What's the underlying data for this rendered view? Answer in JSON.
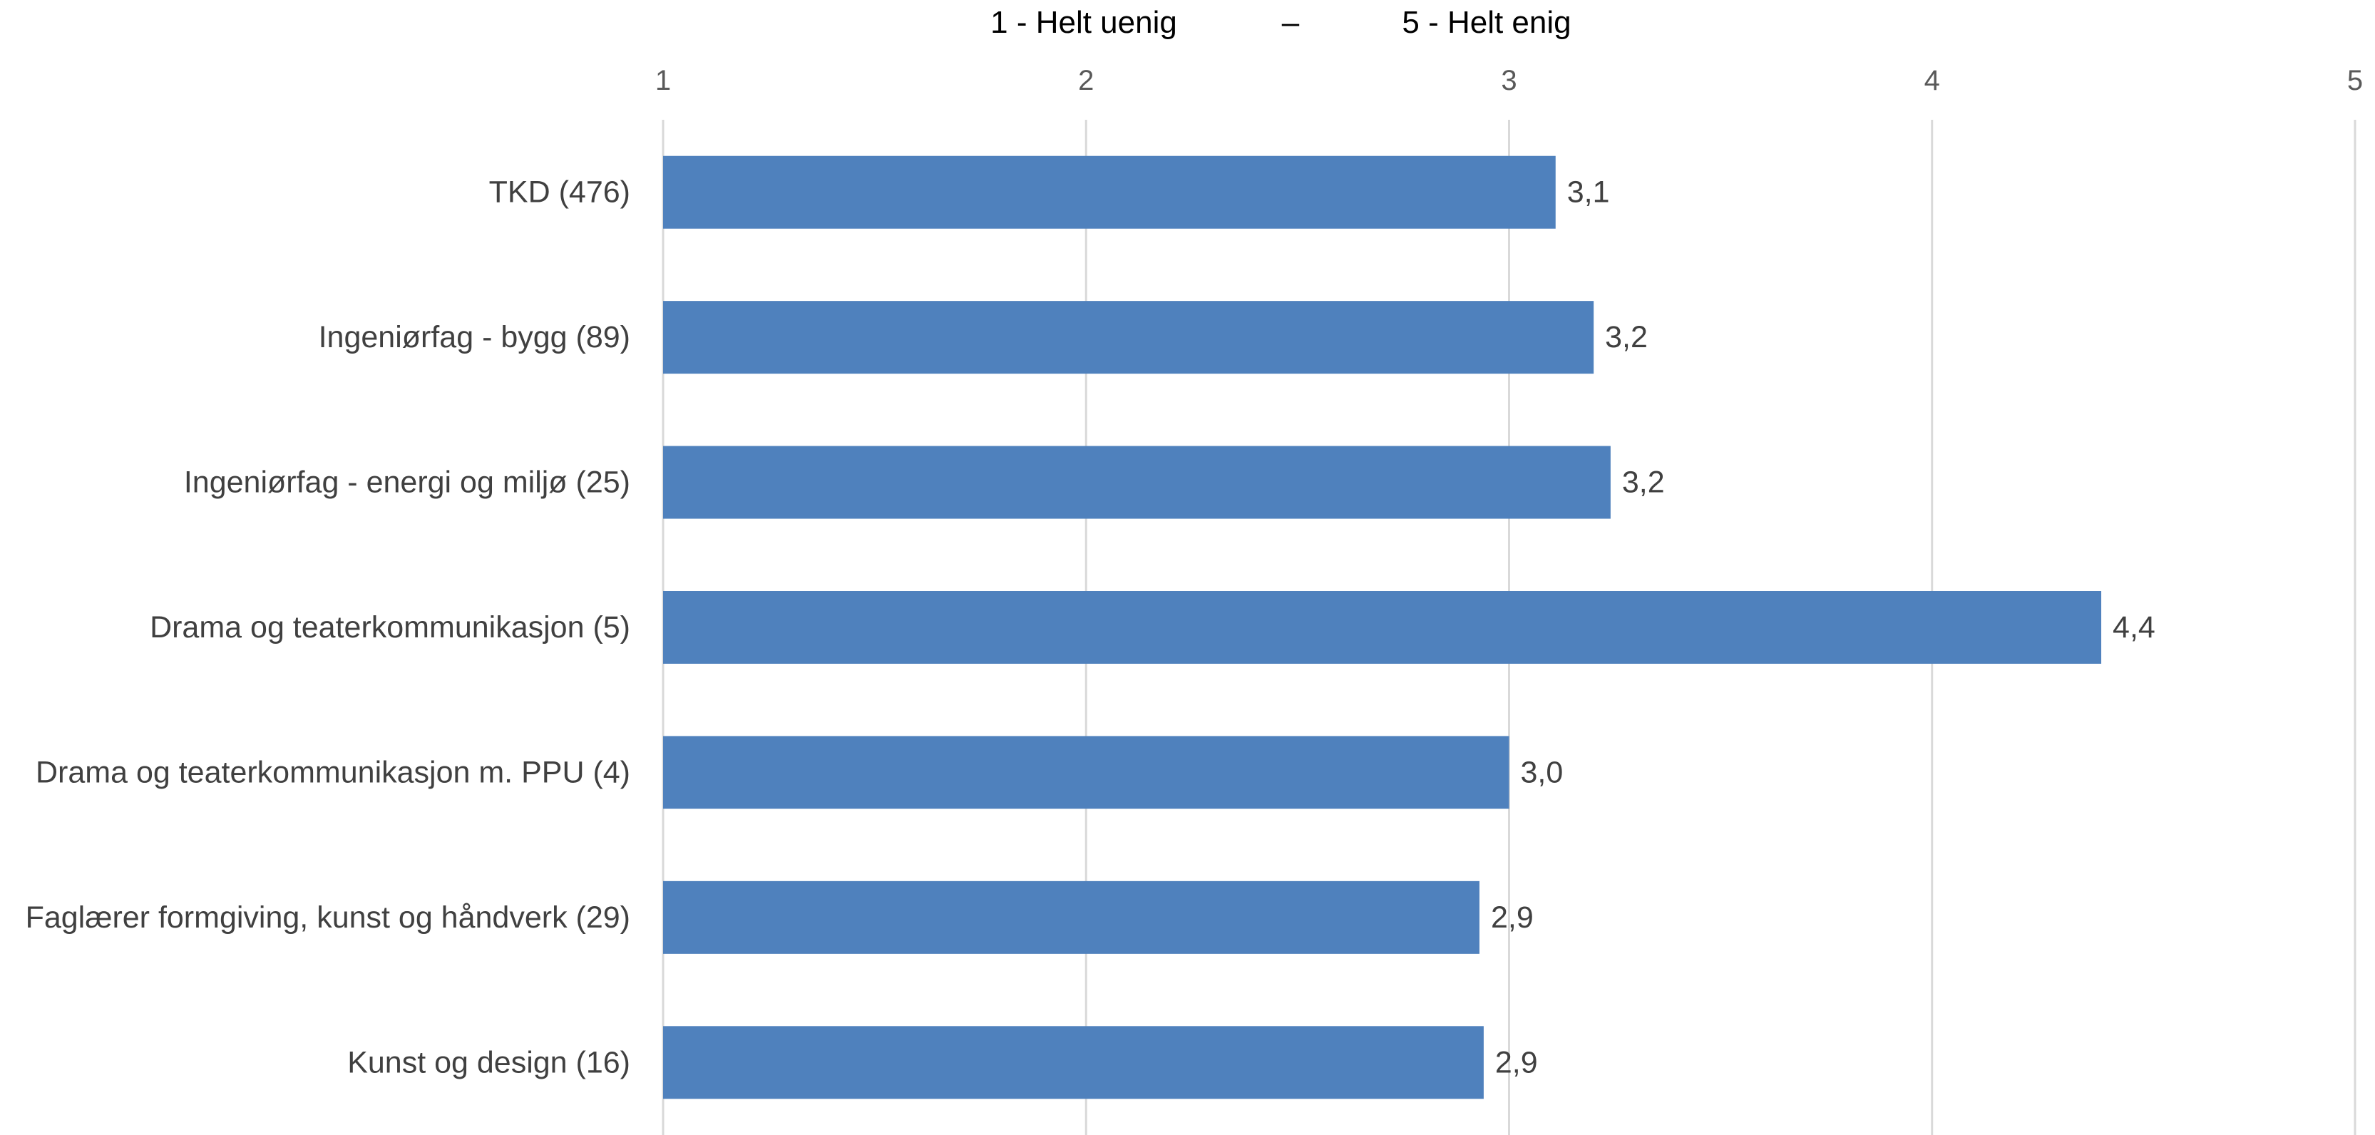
{
  "chart_data": {
    "type": "bar",
    "orientation": "horizontal",
    "axis_title": {
      "left": "1 - Helt uenig",
      "separator": "–",
      "right": "5 - Helt enig"
    },
    "x_ticks": [
      "1",
      "2",
      "3",
      "4",
      "5"
    ],
    "xlim": [
      1,
      5
    ],
    "grid": true,
    "categories": [
      "TKD (476)",
      "Ingeniørfag - bygg (89)",
      "Ingeniørfag - energi og miljø (25)",
      "Drama og teaterkommunikasjon (5)",
      "Drama og teaterkommunikasjon m. PPU (4)",
      "Faglærer formgiving, kunst og håndverk (29)",
      "Kunst og design (16)"
    ],
    "values": [
      3.11,
      3.2,
      3.24,
      4.4,
      3.0,
      2.93,
      2.94
    ],
    "value_labels": [
      "3,1",
      "3,2",
      "3,2",
      "4,4",
      "3,0",
      "2,9",
      "2,9"
    ],
    "bar_color": "#4f81bd"
  }
}
